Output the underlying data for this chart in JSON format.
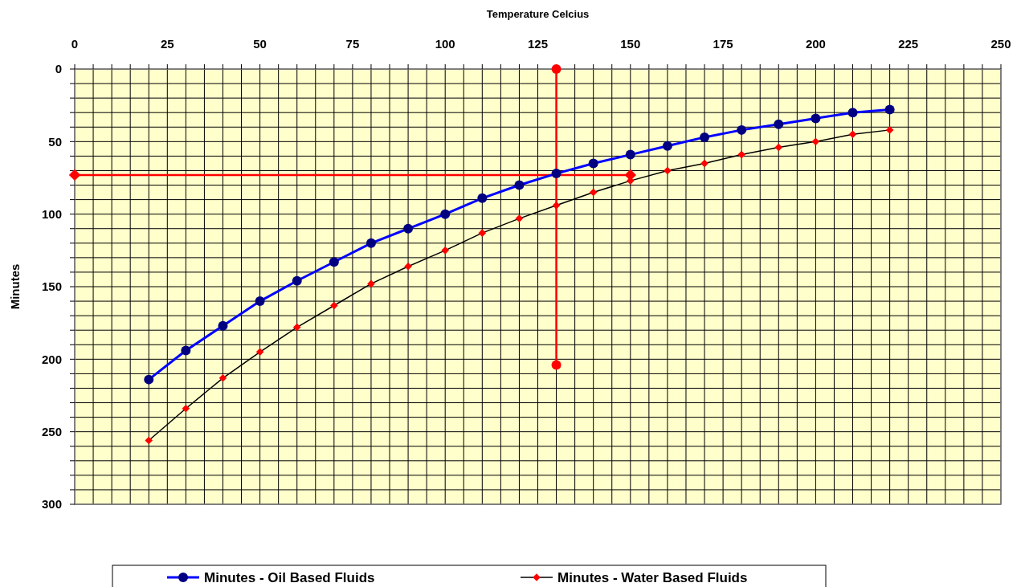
{
  "chart_data": {
    "type": "line",
    "xlabel": "Temperature Celcius",
    "ylabel": "Minutes",
    "xlim": [
      0,
      250
    ],
    "ylim": [
      300,
      0
    ],
    "xticks": [
      0,
      {
        "value": 5,
        "label": null
      },
      {
        "value": 10,
        "label": null
      },
      {
        "value": 15,
        "label": null
      },
      {
        "value": 20,
        "label": null
      },
      25,
      {
        "value": 30,
        "label": null
      },
      {
        "value": 35,
        "label": null
      },
      {
        "value": 40,
        "label": null
      },
      {
        "value": 45,
        "label": null
      },
      50,
      {
        "value": 55,
        "label": null
      },
      {
        "value": 60,
        "label": null
      },
      {
        "value": 65,
        "label": null
      },
      {
        "value": 70,
        "label": null
      },
      75,
      {
        "value": 80,
        "label": null
      },
      {
        "value": 85,
        "label": null
      },
      {
        "value": 90,
        "label": null
      },
      {
        "value": 95,
        "label": null
      },
      100,
      {
        "value": 105,
        "label": null
      },
      {
        "value": 110,
        "label": null
      },
      {
        "value": 115,
        "label": null
      },
      {
        "value": 120,
        "label": null
      },
      125,
      {
        "value": 130,
        "label": null
      },
      {
        "value": 135,
        "label": null
      },
      {
        "value": 140,
        "label": null
      },
      {
        "value": 145,
        "label": null
      },
      150,
      {
        "value": 155,
        "label": null
      },
      {
        "value": 160,
        "label": null
      },
      {
        "value": 165,
        "label": null
      },
      {
        "value": 170,
        "label": null
      },
      175,
      {
        "value": 180,
        "label": null
      },
      {
        "value": 185,
        "label": null
      },
      {
        "value": 190,
        "label": null
      },
      {
        "value": 195,
        "label": null
      },
      200,
      {
        "value": 205,
        "label": null
      },
      {
        "value": 210,
        "label": null
      },
      {
        "value": 215,
        "label": null
      },
      {
        "value": 220,
        "label": null
      },
      225,
      {
        "value": 230,
        "label": null
      },
      {
        "value": 235,
        "label": null
      },
      {
        "value": 240,
        "label": null
      },
      {
        "value": 245,
        "label": null
      },
      250
    ],
    "yticks": [
      0,
      {
        "value": 10,
        "label": null
      },
      {
        "value": 20,
        "label": null
      },
      {
        "value": 30,
        "label": null
      },
      {
        "value": 40,
        "label": null
      },
      50,
      {
        "value": 60,
        "label": null
      },
      {
        "value": 70,
        "label": null
      },
      {
        "value": 80,
        "label": null
      },
      {
        "value": 90,
        "label": null
      },
      100,
      {
        "value": 110,
        "label": null
      },
      {
        "value": 120,
        "label": null
      },
      {
        "value": 130,
        "label": null
      },
      {
        "value": 140,
        "label": null
      },
      150,
      {
        "value": 160,
        "label": null
      },
      {
        "value": 170,
        "label": null
      },
      {
        "value": 180,
        "label": null
      },
      {
        "value": 190,
        "label": null
      },
      200,
      {
        "value": 210,
        "label": null
      },
      {
        "value": 220,
        "label": null
      },
      {
        "value": 230,
        "label": null
      },
      {
        "value": 240,
        "label": null
      },
      250,
      {
        "value": 260,
        "label": null
      },
      {
        "value": 270,
        "label": null
      },
      {
        "value": 280,
        "label": null
      },
      {
        "value": 290,
        "label": null
      },
      300
    ],
    "grid": true,
    "legend": "bottom",
    "series": [
      {
        "name": "Minutes - Oil Based Fluids",
        "color": "#0000ff",
        "marker": "circle",
        "colors": [
          "#000080",
          "#000080",
          "#000080",
          "#000080",
          "#000080",
          "#000080",
          "#000080",
          "#000080",
          "#000080",
          "#000080",
          "#000080",
          "#000080",
          "#000080",
          "#000080",
          "#000080",
          "#000080",
          "#000080",
          "#000080",
          "#000080",
          "#000080",
          "#000080"
        ],
        "x": [
          20,
          30,
          40,
          50,
          60,
          70,
          80,
          90,
          100,
          110,
          120,
          130,
          140,
          150,
          160,
          170,
          180,
          190,
          200,
          210,
          220
        ],
        "values": [
          214,
          194,
          177,
          160,
          146,
          133,
          120,
          110,
          100,
          89,
          80,
          72,
          65,
          59,
          53,
          47,
          42,
          38,
          34,
          30,
          28
        ]
      },
      {
        "name": "Minutes - Water Based Fluids",
        "color": "#000000",
        "marker": "diamond",
        "colors": [
          "#ff0000",
          "#ff0000",
          "#ff0000",
          "#ff0000",
          "#ff0000",
          "#ff0000",
          "#ff0000",
          "#ff0000",
          "#ff0000",
          "#ff0000",
          "#ff0000",
          "#ff0000",
          "#ff0000",
          "#ff0000",
          "#ff0000",
          "#ff0000",
          "#ff0000",
          "#ff0000",
          "#ff0000",
          "#ff0000",
          "#ff0000"
        ],
        "x": [
          20,
          30,
          40,
          50,
          60,
          70,
          80,
          90,
          100,
          110,
          120,
          130,
          140,
          150,
          160,
          170,
          180,
          190,
          200,
          210,
          220
        ],
        "values": [
          256,
          234,
          213,
          195,
          178,
          163,
          148,
          136,
          125,
          113,
          103,
          94,
          85,
          77,
          70,
          65,
          59,
          54,
          50,
          45,
          42
        ]
      },
      {
        "color": "#ff0000",
        "marker": "circle",
        "x": [
          130,
          130
        ],
        "values": [
          0,
          204
        ]
      },
      {
        "color": "#ff0000",
        "marker": "diamond",
        "x": [
          0,
          150
        ],
        "values": [
          73,
          73
        ]
      }
    ]
  }
}
